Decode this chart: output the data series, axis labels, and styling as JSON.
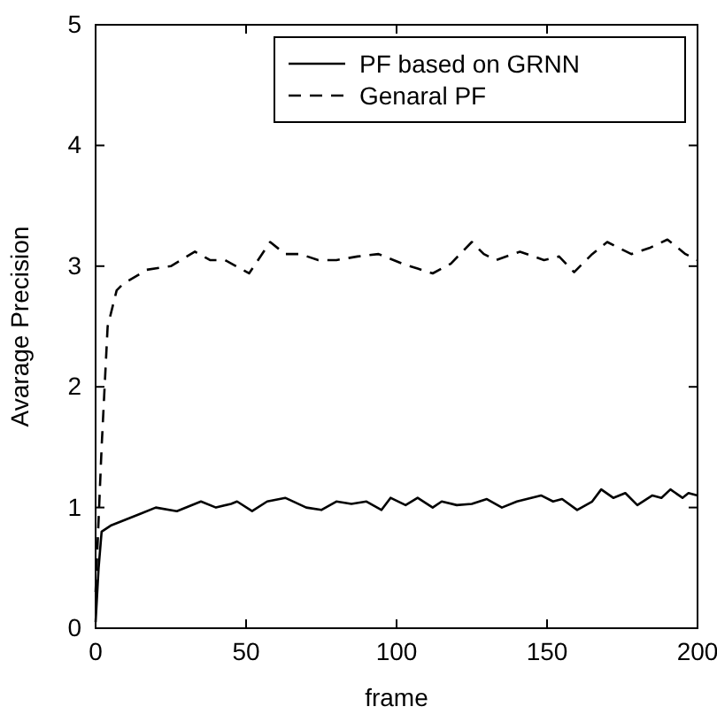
{
  "chart_data": {
    "type": "line",
    "xlabel": "frame",
    "ylabel": "Avarage Precision",
    "xlim": [
      0,
      200
    ],
    "xticks": [
      0,
      50,
      100,
      150,
      200
    ],
    "ylim": [
      0,
      5
    ],
    "yticks": [
      0,
      1,
      2,
      3,
      4,
      5
    ],
    "grid": false,
    "legend": "top right",
    "series": [
      {
        "name": "PF based on GRNN",
        "color": "#000000",
        "line_style": "solid",
        "x": [
          0,
          1,
          2,
          5,
          10,
          15,
          20,
          27,
          35,
          40,
          45,
          47,
          52,
          57,
          63,
          70,
          75,
          80,
          85,
          90,
          95,
          98,
          103,
          107,
          112,
          115,
          120,
          125,
          130,
          135,
          140,
          148,
          152,
          155,
          160,
          165,
          168,
          172,
          176,
          180,
          185,
          188,
          191,
          195,
          197,
          200
        ],
        "values": [
          0.05,
          0.5,
          0.8,
          0.85,
          0.9,
          0.95,
          1.0,
          0.97,
          1.05,
          1.0,
          1.03,
          1.05,
          0.97,
          1.05,
          1.08,
          1.0,
          0.98,
          1.05,
          1.03,
          1.05,
          0.98,
          1.08,
          1.02,
          1.08,
          1.0,
          1.05,
          1.02,
          1.03,
          1.07,
          1.0,
          1.05,
          1.1,
          1.05,
          1.07,
          0.98,
          1.05,
          1.15,
          1.08,
          1.12,
          1.02,
          1.1,
          1.08,
          1.15,
          1.08,
          1.12,
          1.1
        ]
      },
      {
        "name": "Genaral PF",
        "color": "#000000",
        "line_style": "dashed",
        "x": [
          0,
          2,
          4,
          7,
          9,
          17,
          25,
          33,
          38,
          43,
          51,
          58,
          63,
          68,
          74,
          80,
          87,
          94,
          102,
          107,
          112,
          118,
          125,
          129,
          133,
          141,
          149,
          154,
          159,
          165,
          170,
          178,
          184,
          190,
          196,
          200
        ],
        "values": [
          0.3,
          1.5,
          2.5,
          2.8,
          2.85,
          2.97,
          3.0,
          3.12,
          3.05,
          3.05,
          2.94,
          3.2,
          3.1,
          3.1,
          3.05,
          3.05,
          3.08,
          3.1,
          3.02,
          2.98,
          2.94,
          3.02,
          3.2,
          3.1,
          3.05,
          3.12,
          3.05,
          3.08,
          2.95,
          3.1,
          3.2,
          3.1,
          3.15,
          3.22,
          3.1,
          3.05
        ]
      }
    ]
  }
}
